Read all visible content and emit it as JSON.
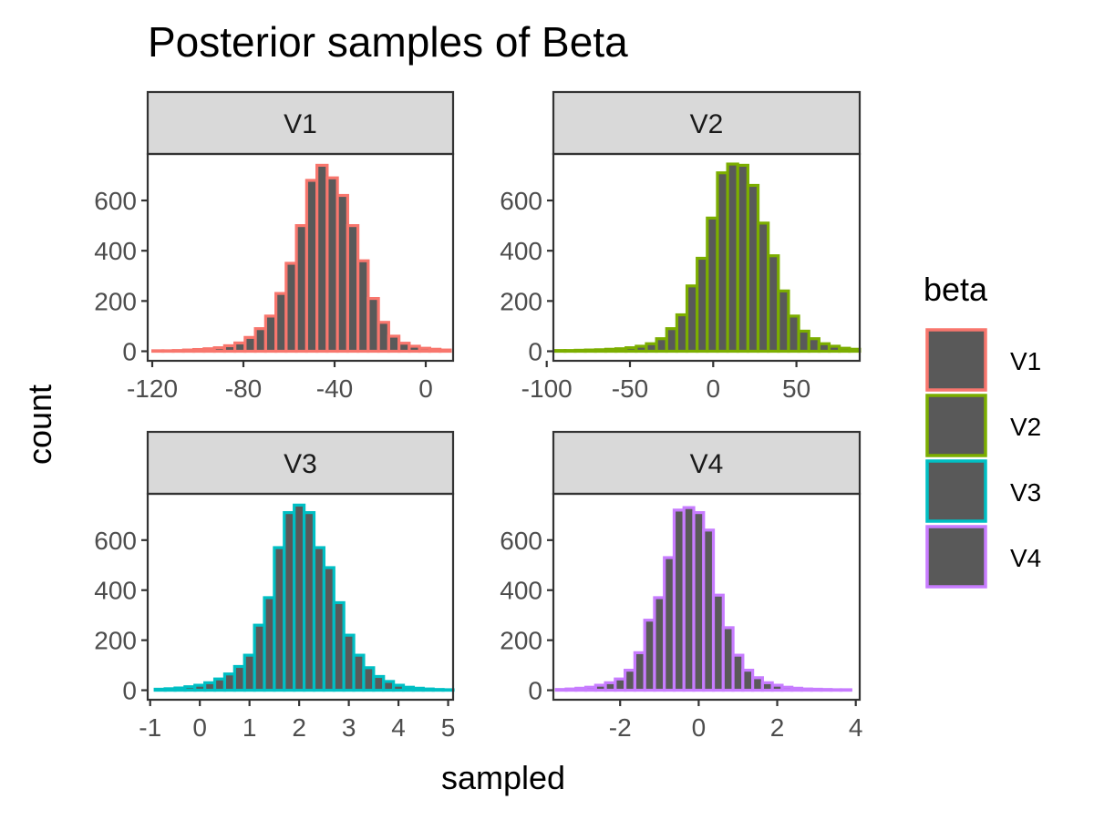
{
  "chart_data": {
    "type": "bar",
    "subtype": "faceted-histogram",
    "title": "Posterior samples of Beta",
    "xlabel": "sampled",
    "ylabel": "count",
    "colors": {
      "V1": "#F8766D",
      "V2": "#7CAE00",
      "V3": "#00BFC4",
      "V4": "#C77CFF"
    },
    "bar_fill": "#595959",
    "strip_fill": "#d9d9d9",
    "legend": {
      "title": "beta",
      "position": "right",
      "entries": [
        "V1",
        "V2",
        "V3",
        "V4"
      ]
    },
    "panels": [
      {
        "name": "V1",
        "xlim": [
          -122,
          12
        ],
        "xticks": [
          -120,
          -80,
          -40,
          0
        ],
        "xtick_labels": [
          "-120",
          "-80",
          "-40",
          "0"
        ],
        "yticks": [
          0,
          200,
          400,
          600
        ],
        "ytick_labels": [
          "0",
          "200",
          "400",
          "600"
        ],
        "ylim": [
          -38,
          785
        ],
        "bin_width": 4.5,
        "bin_centers": [
          -117.5,
          -113,
          -108.5,
          -104,
          -99.5,
          -95,
          -90.5,
          -86,
          -81.5,
          -77,
          -72.5,
          -68,
          -63.5,
          -59,
          -54.5,
          -50,
          -45.5,
          -41,
          -36.5,
          -32,
          -27.5,
          -23,
          -18.5,
          -14,
          -9.5,
          -5,
          -0.5,
          4,
          8.5
        ],
        "counts": [
          2,
          2,
          3,
          5,
          7,
          10,
          14,
          22,
          33,
          55,
          90,
          140,
          230,
          350,
          500,
          680,
          740,
          690,
          620,
          500,
          360,
          210,
          115,
          60,
          32,
          20,
          12,
          8,
          5
        ]
      },
      {
        "name": "V2",
        "xlim": [
          -96,
          88
        ],
        "xticks": [
          -100,
          -50,
          0,
          50
        ],
        "xtick_labels": [
          "-100",
          "-50",
          "0",
          "50"
        ],
        "yticks": [
          0,
          200,
          400,
          600
        ],
        "ytick_labels": [
          "0",
          "200",
          "400",
          "600"
        ],
        "ylim": [
          -38,
          785
        ],
        "bin_width": 6.1,
        "bin_centers": [
          -92,
          -85.9,
          -79.8,
          -73.7,
          -67.6,
          -61.5,
          -55.4,
          -49.3,
          -43.2,
          -37.1,
          -31,
          -24.9,
          -18.8,
          -12.7,
          -6.6,
          -0.5,
          5.6,
          11.7,
          17.8,
          23.9,
          30,
          36.1,
          42.2,
          48.3,
          54.4,
          60.5,
          66.6,
          72.7,
          78.8,
          84.9
        ],
        "counts": [
          3,
          3,
          4,
          5,
          6,
          8,
          10,
          14,
          20,
          30,
          50,
          90,
          145,
          260,
          370,
          530,
          710,
          745,
          740,
          660,
          510,
          380,
          240,
          140,
          80,
          50,
          30,
          20,
          12,
          8
        ]
      },
      {
        "name": "V3",
        "xlim": [
          -1.05,
          5.1
        ],
        "xticks": [
          -1,
          0,
          1,
          2,
          3,
          4,
          5
        ],
        "xtick_labels": [
          "-1",
          "0",
          "1",
          "2",
          "3",
          "4",
          "5"
        ],
        "yticks": [
          0,
          200,
          400,
          600
        ],
        "ytick_labels": [
          "0",
          "200",
          "400",
          "600"
        ],
        "ylim": [
          -38,
          785
        ],
        "bin_width": 0.2,
        "bin_centers": [
          -0.8,
          -0.6,
          -0.4,
          -0.2,
          0,
          0.2,
          0.4,
          0.6,
          0.8,
          1,
          1.2,
          1.4,
          1.6,
          1.8,
          2,
          2.2,
          2.4,
          2.6,
          2.8,
          3,
          3.2,
          3.4,
          3.6,
          3.8,
          4,
          4.2,
          4.4,
          4.6,
          4.8,
          5
        ],
        "counts": [
          4,
          6,
          9,
          14,
          20,
          30,
          45,
          65,
          95,
          140,
          260,
          370,
          570,
          710,
          740,
          710,
          570,
          490,
          350,
          220,
          140,
          90,
          55,
          35,
          20,
          12,
          8,
          5,
          3,
          2
        ]
      },
      {
        "name": "V4",
        "xlim": [
          -3.7,
          4.1
        ],
        "xticks": [
          -2,
          0,
          2,
          4
        ],
        "xtick_labels": [
          "-2",
          "0",
          "2",
          "4"
        ],
        "yticks": [
          0,
          200,
          400,
          600
        ],
        "ytick_labels": [
          "0",
          "200",
          "400",
          "600"
        ],
        "ylim": [
          -38,
          785
        ],
        "bin_width": 0.25,
        "bin_centers": [
          -3.5,
          -3.25,
          -3,
          -2.75,
          -2.5,
          -2.25,
          -2,
          -1.75,
          -1.5,
          -1.25,
          -1,
          -0.75,
          -0.5,
          -0.25,
          0,
          0.25,
          0.5,
          0.75,
          1,
          1.25,
          1.5,
          1.75,
          2,
          2.25,
          2.5,
          2.75,
          3,
          3.25,
          3.5,
          3.75
        ],
        "counts": [
          3,
          5,
          8,
          12,
          20,
          30,
          45,
          80,
          150,
          280,
          370,
          530,
          720,
          730,
          710,
          640,
          380,
          250,
          140,
          80,
          50,
          30,
          20,
          12,
          8,
          5,
          4,
          3,
          2,
          2
        ]
      }
    ]
  }
}
